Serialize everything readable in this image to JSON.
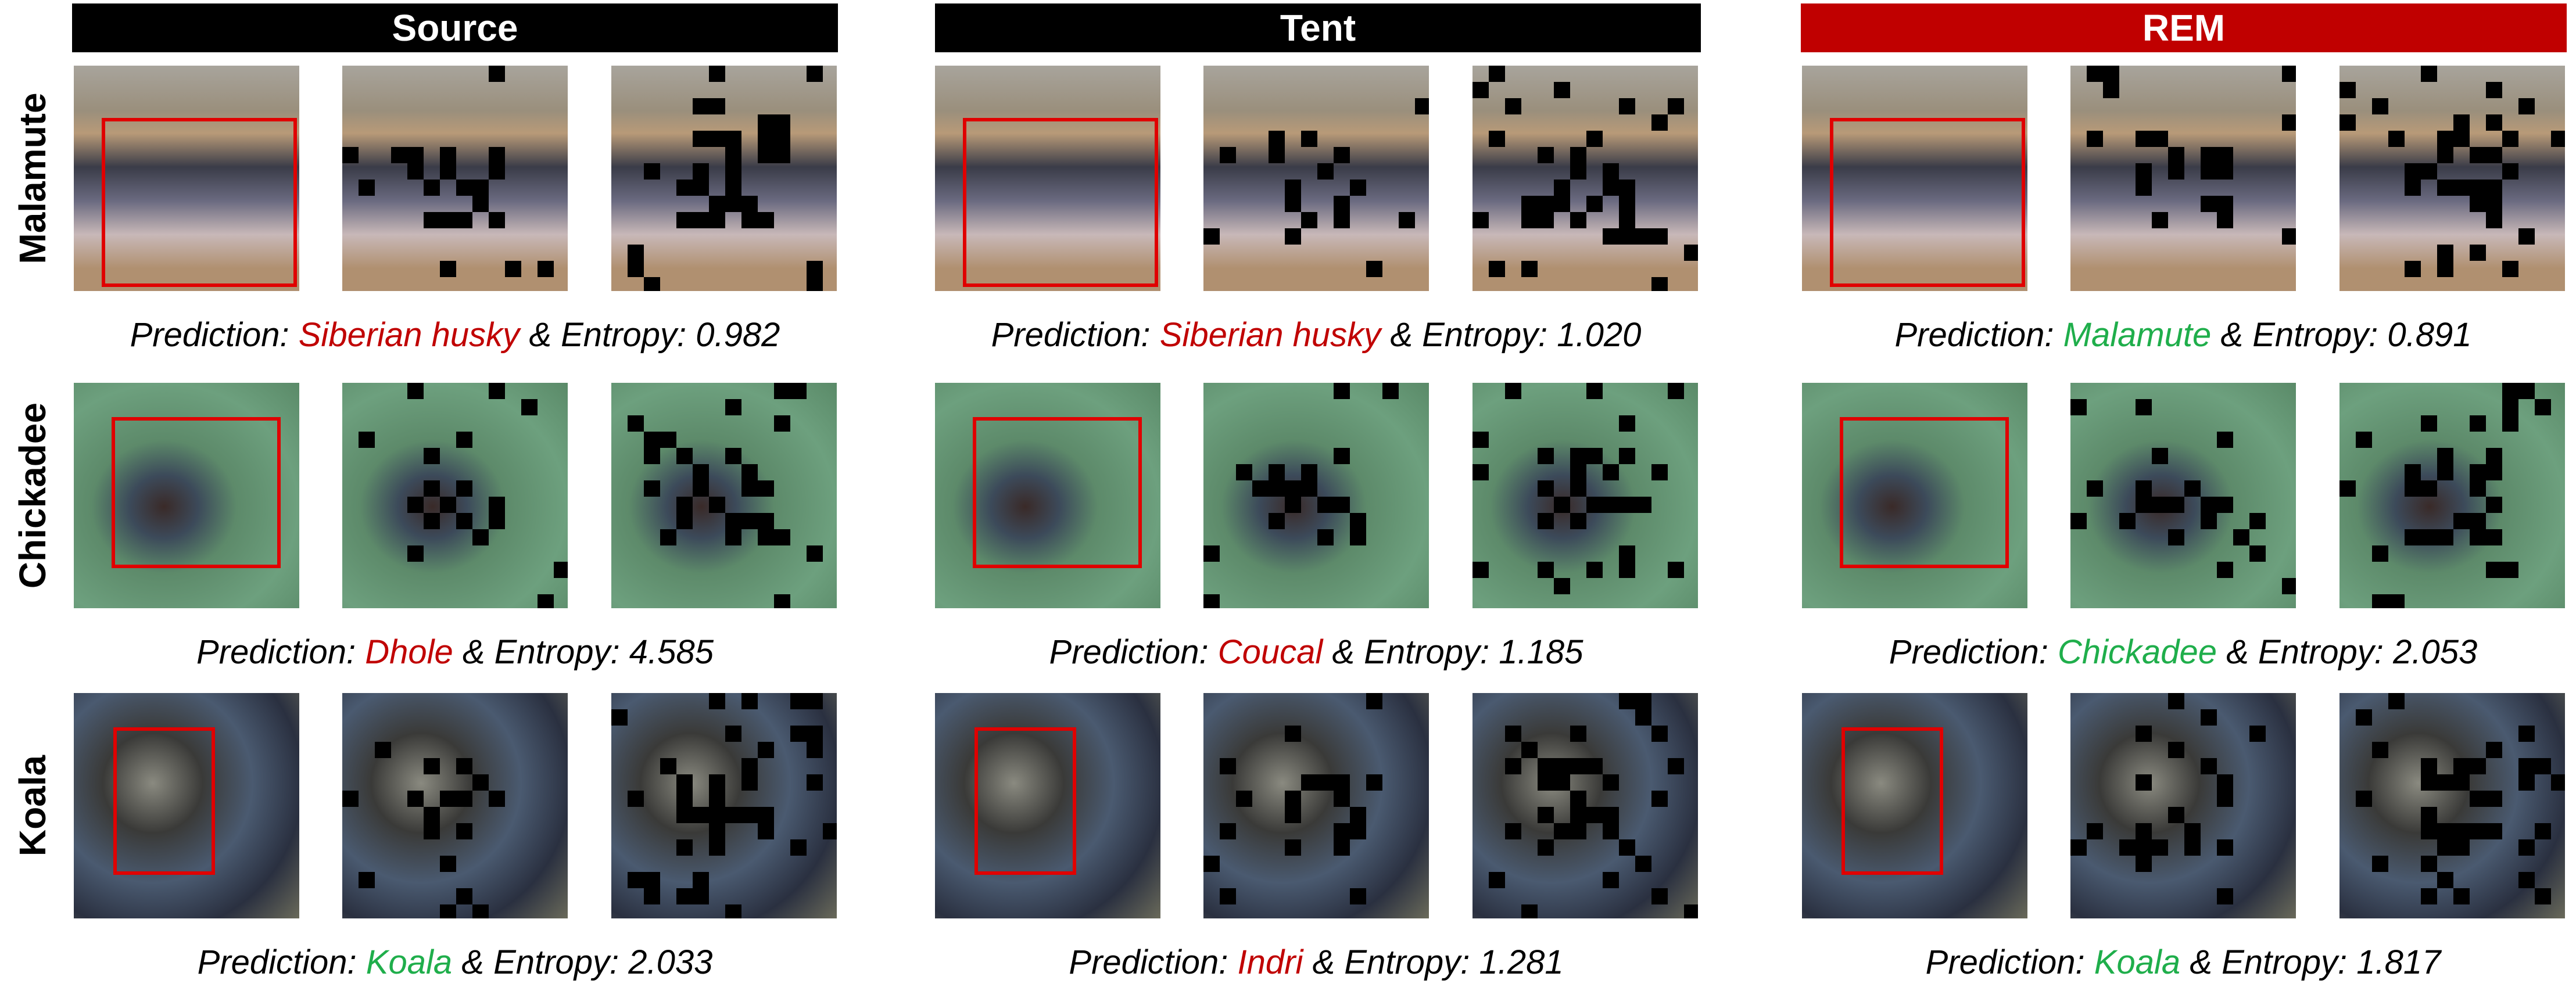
{
  "prediction_label": "Prediction:",
  "entropy_label": "& Entropy:",
  "correct_color": "#1fae4b",
  "wrong_color": "#c00000",
  "columns": [
    {
      "title": "Source",
      "color": "#000000"
    },
    {
      "title": "Tent",
      "color": "#000000"
    },
    {
      "title": "REM",
      "color": "#c00000"
    }
  ],
  "rows": [
    {
      "label": "Malamute",
      "cells": [
        {
          "prediction": "Siberian husky",
          "correct": false,
          "entropy": "0.982"
        },
        {
          "prediction": "Siberian husky",
          "correct": false,
          "entropy": "1.020"
        },
        {
          "prediction": "Malamute",
          "correct": true,
          "entropy": "0.891"
        }
      ]
    },
    {
      "label": "Chickadee",
      "cells": [
        {
          "prediction": "Dhole",
          "correct": false,
          "entropy": "4.585"
        },
        {
          "prediction": "Coucal",
          "correct": false,
          "entropy": "1.185"
        },
        {
          "prediction": "Chickadee",
          "correct": true,
          "entropy": "2.053"
        }
      ]
    },
    {
      "label": "Koala",
      "cells": [
        {
          "prediction": "Koala",
          "correct": true,
          "entropy": "2.033"
        },
        {
          "prediction": "Indri",
          "correct": false,
          "entropy": "1.281"
        },
        {
          "prediction": "Koala",
          "correct": true,
          "entropy": "1.817"
        }
      ]
    }
  ]
}
